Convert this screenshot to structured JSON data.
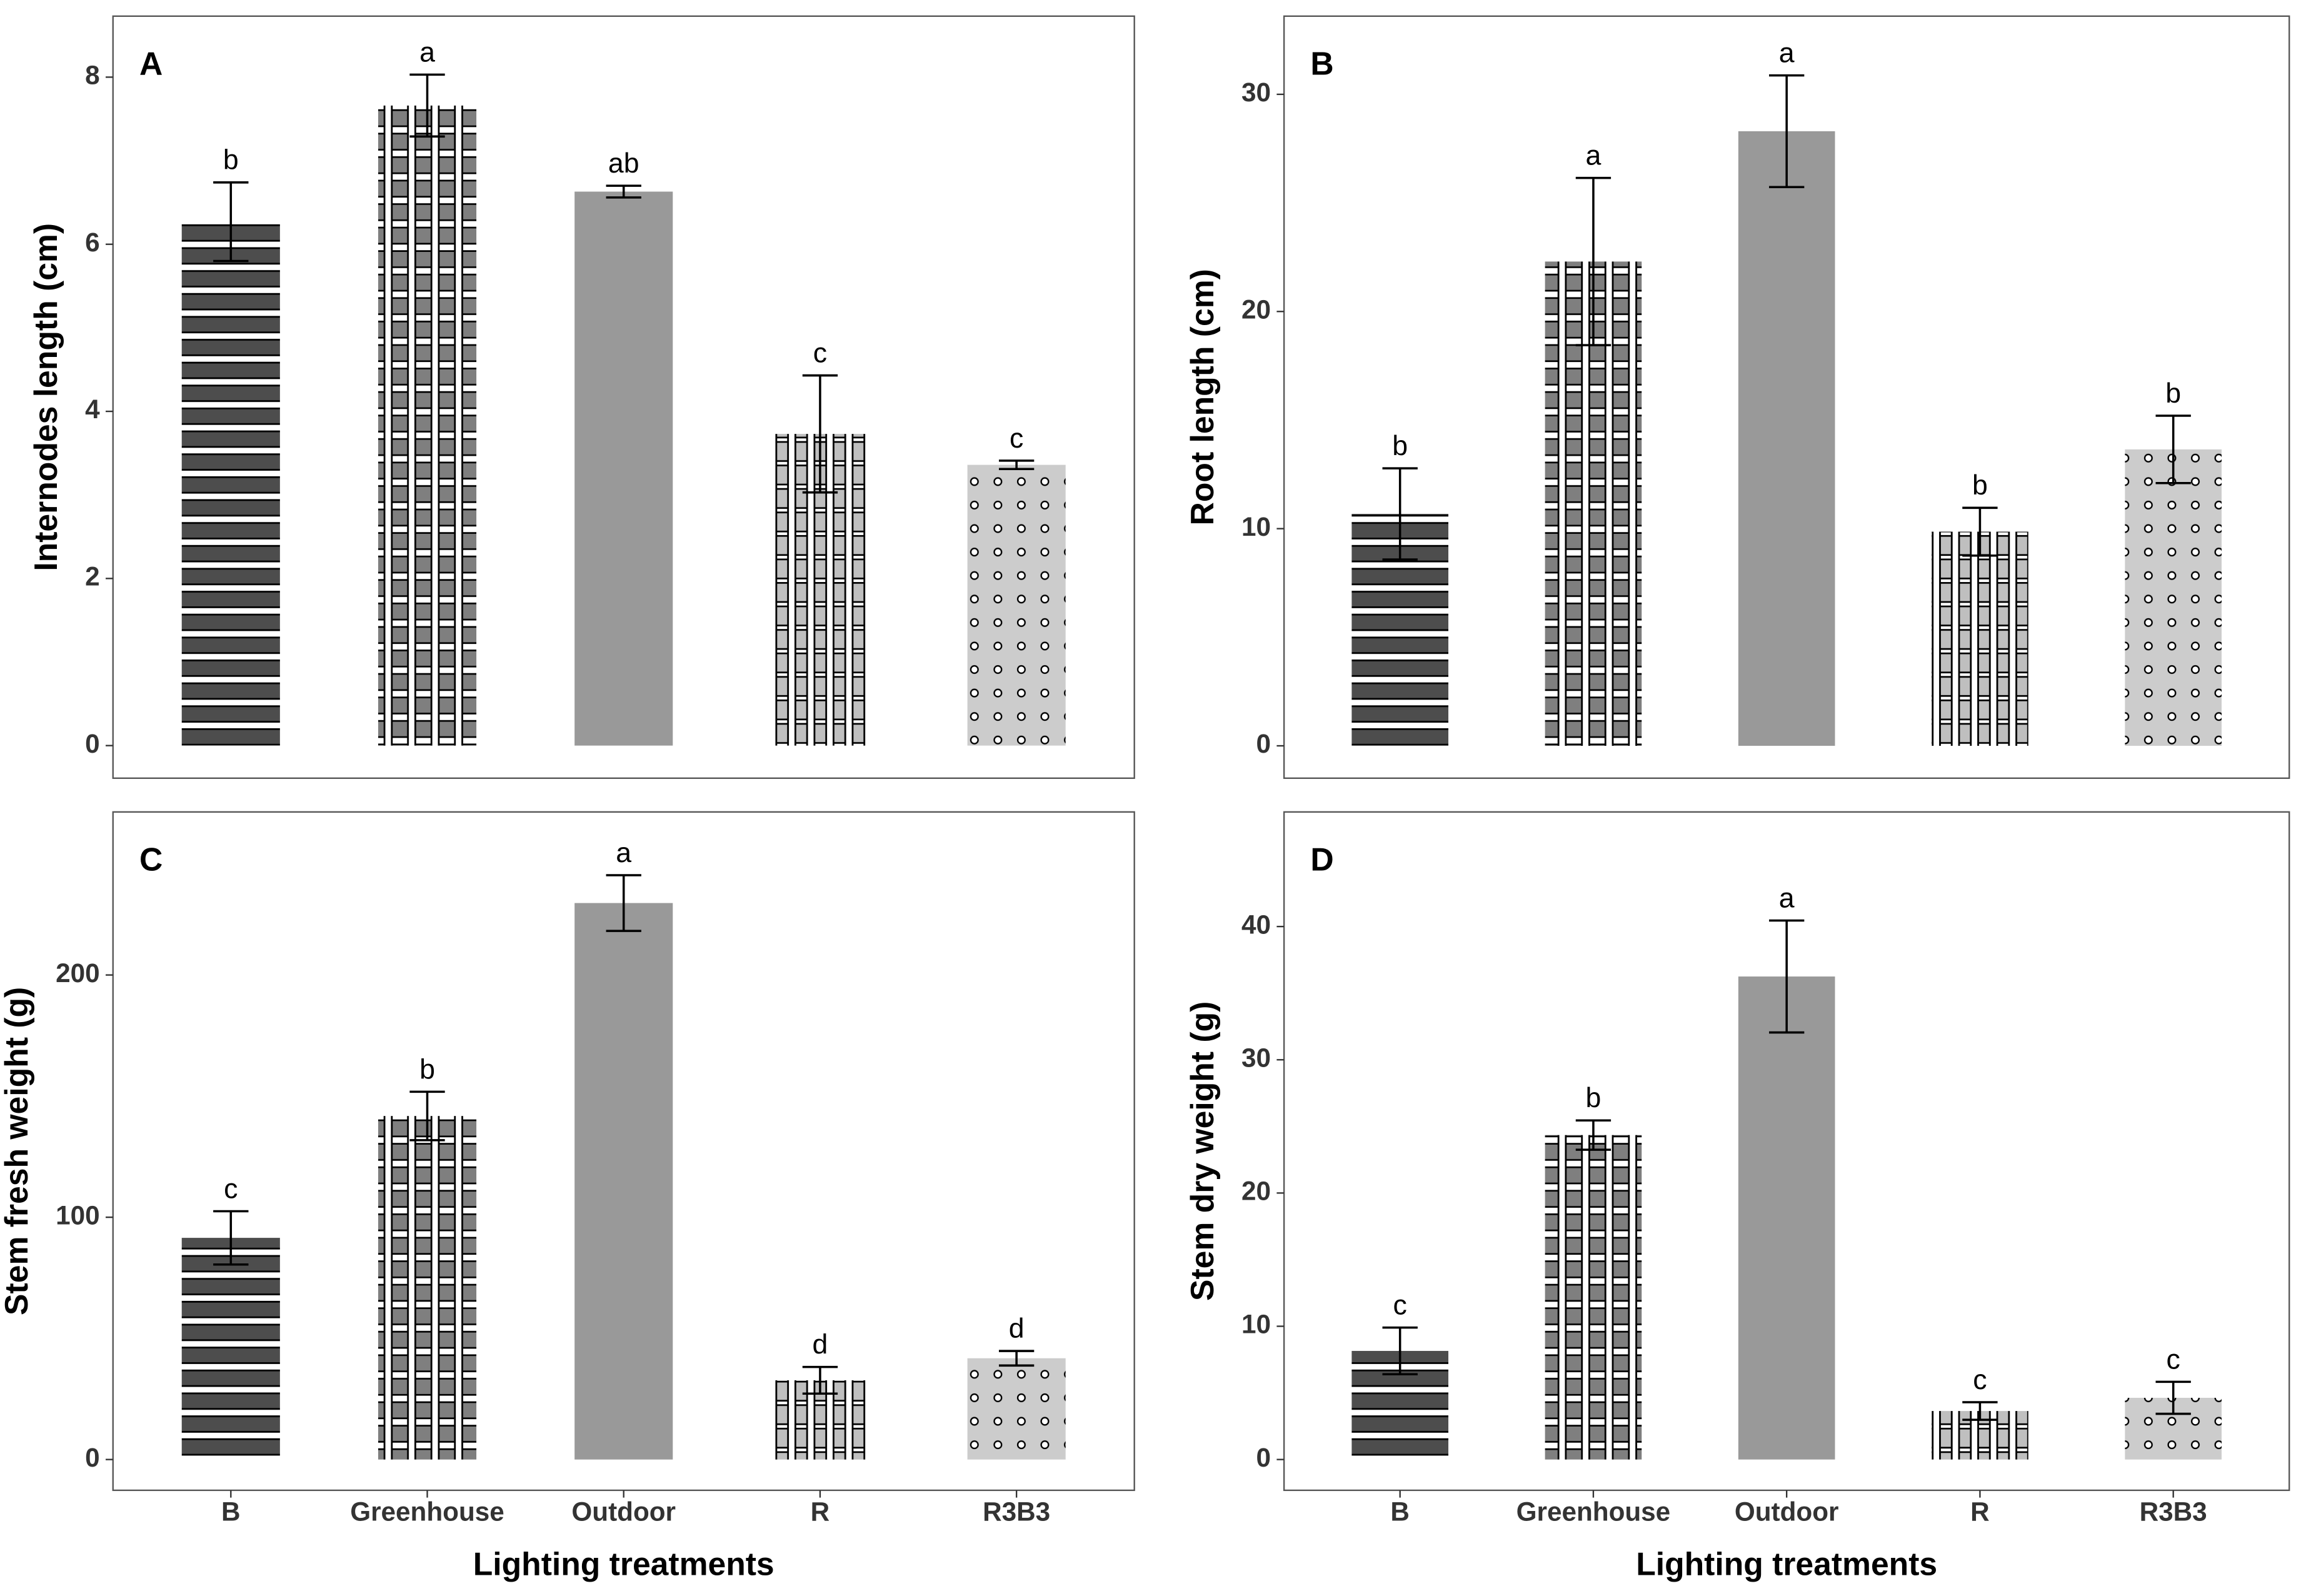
{
  "chart_data": [
    {
      "type": "bar",
      "panel_label": "A",
      "ylabel": "Internodes length (cm)",
      "values": [
        6.27,
        7.66,
        6.63,
        3.73,
        3.36
      ],
      "errors": [
        0.47,
        0.37,
        0.07,
        0.7,
        0.05
      ],
      "letters": [
        "b",
        "a",
        "ab",
        "c",
        "c"
      ],
      "ylim": [
        -0.39,
        8.73
      ],
      "yticks": [
        0,
        2,
        4,
        6,
        8
      ],
      "colors": [
        "#4d4d4d",
        "#7f7f7f",
        "#999999",
        "#bfbfbf",
        "#cccccc"
      ],
      "patterns": [
        "stripes",
        "weave",
        "none",
        "grid",
        "dots"
      ]
    },
    {
      "type": "bar",
      "panel_label": "B",
      "ylabel": "Root length (cm)",
      "values": [
        10.68,
        22.3,
        28.3,
        9.86,
        13.65
      ],
      "errors": [
        2.1,
        3.85,
        2.57,
        1.1,
        1.55
      ],
      "letters": [
        "b",
        "a",
        "a",
        "b",
        "b"
      ],
      "ylim": [
        -1.49,
        33.6
      ],
      "yticks": [
        0,
        10,
        20,
        30
      ],
      "colors": [
        "#4d4d4d",
        "#7f7f7f",
        "#999999",
        "#bfbfbf",
        "#cccccc"
      ],
      "patterns": [
        "stripes",
        "weave",
        "none",
        "grid",
        "dots"
      ]
    },
    {
      "type": "bar",
      "panel_label": "C",
      "ylabel": "Stem fresh weight (g)",
      "xlabel": "Lighting treatments",
      "categories": [
        "B",
        "Greenhouse",
        "Outdoor",
        "R",
        "R3B3"
      ],
      "values": [
        91.5,
        141.8,
        229.7,
        32.7,
        41.8
      ],
      "errors": [
        11,
        10,
        11.5,
        5.5,
        3
      ],
      "letters": [
        "c",
        "b",
        "a",
        "d",
        "d"
      ],
      "ylim": [
        -12.7,
        267.3
      ],
      "yticks": [
        0,
        100,
        200
      ],
      "colors": [
        "#4d4d4d",
        "#7f7f7f",
        "#999999",
        "#bfbfbf",
        "#cccccc"
      ],
      "patterns": [
        "stripes",
        "weave",
        "none",
        "grid",
        "dots"
      ]
    },
    {
      "type": "bar",
      "panel_label": "D",
      "ylabel": "Stem dry weight (g)",
      "xlabel": "Lighting treatments",
      "categories": [
        "B",
        "Greenhouse",
        "Outdoor",
        "R",
        "R3B3"
      ],
      "values": [
        8.15,
        24.35,
        36.25,
        3.64,
        4.63
      ],
      "errors": [
        1.75,
        1.1,
        4.2,
        0.66,
        1.2
      ],
      "letters": [
        "c",
        "b",
        "a",
        "c",
        "c"
      ],
      "ylim": [
        -2.31,
        48.6
      ],
      "yticks": [
        0,
        10,
        20,
        30,
        40
      ],
      "colors": [
        "#4d4d4d",
        "#7f7f7f",
        "#999999",
        "#bfbfbf",
        "#cccccc"
      ],
      "patterns": [
        "stripes",
        "weave",
        "none",
        "grid",
        "dots"
      ]
    }
  ]
}
